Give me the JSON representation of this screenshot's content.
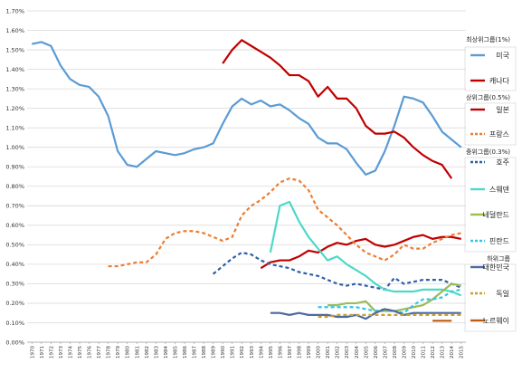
{
  "chart_data": {
    "type": "line",
    "title": "",
    "xlabel": "",
    "ylabel": "",
    "ylim": [
      0,
      1.7
    ],
    "y_ticks": [
      "0.00%",
      "0.10%",
      "0.20%",
      "0.30%",
      "0.40%",
      "0.50%",
      "0.60%",
      "0.70%",
      "0.80%",
      "0.90%",
      "1.00%",
      "1.10%",
      "1.20%",
      "1.30%",
      "1.40%",
      "1.50%",
      "1.60%",
      "1.70%"
    ],
    "x": [
      "1970",
      "1971",
      "1972",
      "1973",
      "1974",
      "1975",
      "1976",
      "1977",
      "1978",
      "1979",
      "1980",
      "1981",
      "1982",
      "1983",
      "1984",
      "1985",
      "1986",
      "1987",
      "1988",
      "1989",
      "1990",
      "1991",
      "1992",
      "1993",
      "1994",
      "1995",
      "1996",
      "1997",
      "1998",
      "1999",
      "2000",
      "2001",
      "2002",
      "2003",
      "2004",
      "2005",
      "2006",
      "2007",
      "2008",
      "2009",
      "2010",
      "2011",
      "2012",
      "2013",
      "2014",
      "2015"
    ],
    "grid": true,
    "legend_position": "right",
    "legend_groups": [
      {
        "title": "최상위그룹(1%)",
        "series_indices": [
          0,
          1
        ]
      },
      {
        "title": "상위그룹(0.5%)",
        "series_indices": [
          2,
          3
        ]
      },
      {
        "title": "중위그룹(0.3%)",
        "series_indices": [
          4,
          5,
          6,
          7
        ]
      },
      {
        "title": "하위그룹",
        "series_indices": [
          8,
          9,
          10
        ]
      }
    ],
    "series": [
      {
        "name": "미국",
        "color": "#5b9bd5",
        "dash": "solid",
        "values": [
          1.53,
          1.54,
          1.52,
          1.42,
          1.35,
          1.32,
          1.31,
          1.26,
          1.16,
          0.98,
          0.91,
          0.9,
          0.94,
          0.98,
          0.97,
          0.96,
          0.97,
          0.99,
          1.0,
          1.02,
          1.12,
          1.21,
          1.25,
          1.22,
          1.24,
          1.21,
          1.22,
          1.19,
          1.15,
          1.12,
          1.05,
          1.02,
          1.02,
          0.99,
          0.92,
          0.86,
          0.88,
          0.98,
          1.11,
          1.26,
          1.25,
          1.23,
          1.16,
          1.08,
          1.04,
          1.0
        ]
      },
      {
        "name": "캐나다",
        "color": "#c00000",
        "dash": "solid",
        "values": [
          null,
          null,
          null,
          null,
          null,
          null,
          null,
          null,
          null,
          null,
          null,
          null,
          null,
          null,
          null,
          null,
          null,
          null,
          null,
          null,
          1.43,
          1.5,
          1.55,
          1.52,
          1.49,
          1.46,
          1.42,
          1.37,
          1.37,
          1.34,
          1.26,
          1.31,
          1.25,
          1.25,
          1.2,
          1.11,
          1.07,
          1.07,
          1.08,
          1.05,
          1.0,
          0.96,
          0.93,
          0.91,
          0.84,
          null
        ]
      },
      {
        "name": "일본",
        "color": "#c00000",
        "dash": "solid",
        "values": [
          null,
          null,
          null,
          null,
          null,
          null,
          null,
          null,
          null,
          null,
          null,
          null,
          null,
          null,
          null,
          null,
          null,
          null,
          null,
          null,
          null,
          null,
          null,
          null,
          0.38,
          0.41,
          0.42,
          0.42,
          0.44,
          0.47,
          0.46,
          0.49,
          0.51,
          0.5,
          0.52,
          0.53,
          0.5,
          0.49,
          0.5,
          0.52,
          0.54,
          0.55,
          0.53,
          0.54,
          0.54,
          0.53
        ]
      },
      {
        "name": "프랑스",
        "color": "#ed7d31",
        "dash": "dash",
        "values": [
          null,
          null,
          null,
          null,
          null,
          null,
          null,
          null,
          0.39,
          0.39,
          0.4,
          0.41,
          0.41,
          0.45,
          0.53,
          0.56,
          0.57,
          0.57,
          0.56,
          0.54,
          0.52,
          0.54,
          0.65,
          0.7,
          0.73,
          0.77,
          0.82,
          0.84,
          0.83,
          0.78,
          0.68,
          0.64,
          0.6,
          0.55,
          0.5,
          0.46,
          0.44,
          0.42,
          0.45,
          0.5,
          0.48,
          0.48,
          0.51,
          0.53,
          0.55,
          0.56
        ]
      },
      {
        "name": "호주",
        "color": "#2e5fa8",
        "dash": "dash",
        "values": [
          null,
          null,
          null,
          null,
          null,
          null,
          null,
          null,
          null,
          null,
          null,
          null,
          null,
          null,
          null,
          null,
          null,
          null,
          null,
          0.35,
          0.39,
          0.43,
          0.46,
          0.45,
          0.42,
          0.4,
          0.39,
          0.38,
          0.36,
          0.35,
          0.34,
          0.32,
          0.3,
          0.29,
          0.3,
          0.29,
          0.28,
          0.27,
          0.33,
          0.3,
          0.31,
          0.32,
          0.32,
          0.32,
          0.3,
          0.28
        ]
      },
      {
        "name": "스웨덴",
        "color": "#4dd8c8",
        "dash": "solid",
        "values": [
          null,
          null,
          null,
          null,
          null,
          null,
          null,
          null,
          null,
          null,
          null,
          null,
          null,
          null,
          null,
          null,
          null,
          null,
          null,
          null,
          null,
          null,
          null,
          null,
          null,
          0.46,
          0.7,
          0.72,
          0.62,
          0.54,
          0.48,
          0.42,
          0.44,
          0.4,
          0.37,
          0.34,
          0.3,
          0.27,
          0.26,
          0.26,
          0.26,
          0.27,
          0.27,
          0.27,
          0.26,
          0.24
        ]
      },
      {
        "name": "네덜란드",
        "color": "#9bbb59",
        "dash": "solid",
        "values": [
          null,
          null,
          null,
          null,
          null,
          null,
          null,
          null,
          null,
          null,
          null,
          null,
          null,
          null,
          null,
          null,
          null,
          null,
          null,
          null,
          null,
          null,
          null,
          null,
          null,
          null,
          null,
          null,
          null,
          null,
          null,
          0.19,
          0.19,
          0.2,
          0.2,
          0.21,
          0.16,
          0.16,
          0.16,
          0.17,
          0.18,
          0.19,
          0.22,
          0.26,
          0.3,
          0.29
        ]
      },
      {
        "name": "핀란드",
        "color": "#31c6e8",
        "dash": "dash",
        "values": [
          null,
          null,
          null,
          null,
          null,
          null,
          null,
          null,
          null,
          null,
          null,
          null,
          null,
          null,
          null,
          null,
          null,
          null,
          null,
          null,
          null,
          null,
          null,
          null,
          null,
          null,
          null,
          null,
          null,
          null,
          0.18,
          0.18,
          0.18,
          0.18,
          0.18,
          0.17,
          0.16,
          0.17,
          0.16,
          0.15,
          0.19,
          0.22,
          0.22,
          0.23,
          0.26,
          0.27
        ]
      },
      {
        "name": "대한민국",
        "color": "#4a6aa0",
        "dash": "solid",
        "values": [
          null,
          null,
          null,
          null,
          null,
          null,
          null,
          null,
          null,
          null,
          null,
          null,
          null,
          null,
          null,
          null,
          null,
          null,
          null,
          null,
          null,
          null,
          null,
          null,
          null,
          0.15,
          0.15,
          0.14,
          0.15,
          0.14,
          0.14,
          0.14,
          0.13,
          0.13,
          0.14,
          0.12,
          0.15,
          0.17,
          0.16,
          0.14,
          0.15,
          0.15,
          0.15,
          0.15,
          0.15,
          0.15
        ]
      },
      {
        "name": "독일",
        "color": "#c8a12a",
        "dash": "dash",
        "values": [
          null,
          null,
          null,
          null,
          null,
          null,
          null,
          null,
          null,
          null,
          null,
          null,
          null,
          null,
          null,
          null,
          null,
          null,
          null,
          null,
          null,
          null,
          null,
          null,
          null,
          null,
          null,
          null,
          null,
          null,
          0.13,
          0.13,
          0.14,
          0.14,
          0.14,
          0.14,
          0.14,
          0.14,
          0.14,
          0.14,
          0.14,
          0.14,
          0.14,
          0.14,
          0.14,
          0.14
        ]
      },
      {
        "name": "노르웨이",
        "color": "#c05a10",
        "dash": "solid",
        "values": [
          null,
          null,
          null,
          null,
          null,
          null,
          null,
          null,
          null,
          null,
          null,
          null,
          null,
          null,
          null,
          null,
          null,
          null,
          null,
          null,
          null,
          null,
          null,
          null,
          null,
          null,
          null,
          null,
          null,
          null,
          null,
          null,
          null,
          null,
          null,
          null,
          null,
          null,
          null,
          null,
          null,
          null,
          0.11,
          0.11,
          0.11,
          null
        ]
      }
    ]
  }
}
